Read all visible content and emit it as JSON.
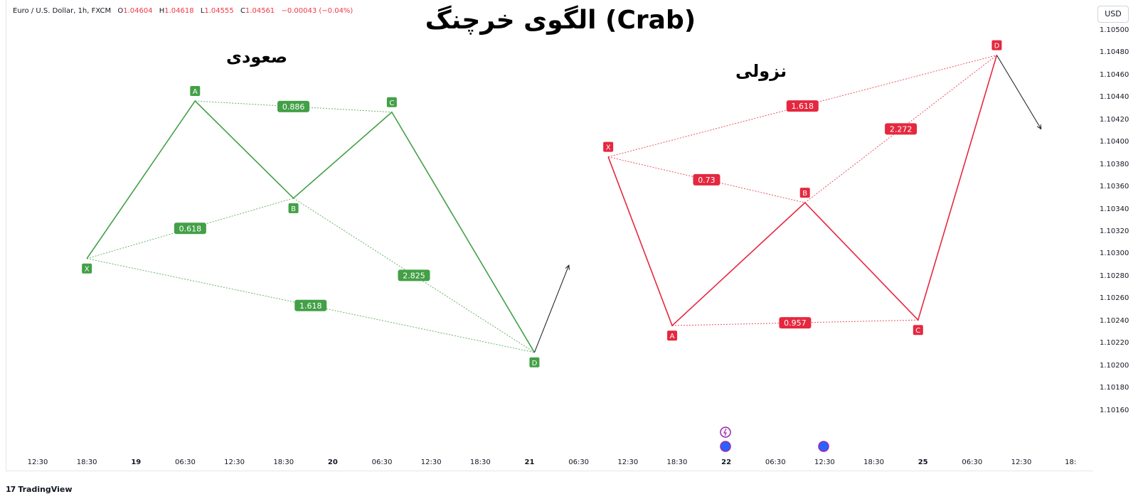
{
  "symbol_line": {
    "name": "Euro / U.S. Dollar, 1h, FXCM",
    "o_label": "O",
    "o_value": "1.04604",
    "h_label": "H",
    "h_value": "1.04618",
    "l_label": "L",
    "l_value": "1.04555",
    "c_label": "C",
    "c_value": "1.04561",
    "change": "−0.00043 (−0.04%)"
  },
  "title": "الگوی خرچنگ (Crab)",
  "currency": "USD",
  "footer_logo": "TradingView",
  "colors": {
    "bullish": "#43a047",
    "bearish": "#e5283f",
    "arrow": "#131722",
    "text": "#131722"
  },
  "chart_data": {
    "type": "line",
    "y_axis": {
      "ticks": [
        "1.10500",
        "1.10480",
        "1.10460",
        "1.10440",
        "1.10420",
        "1.10400",
        "1.10380",
        "1.10360",
        "1.10340",
        "1.10320",
        "1.10300",
        "1.10280",
        "1.10260",
        "1.10240",
        "1.10220",
        "1.10200",
        "1.10180",
        "1.10160"
      ],
      "ylim": [
        1.1014,
        1.105
      ]
    },
    "x_axis": {
      "ticks": [
        {
          "label": "12:30",
          "bold": false
        },
        {
          "label": "18:30",
          "bold": false
        },
        {
          "label": "19",
          "bold": true
        },
        {
          "label": "06:30",
          "bold": false
        },
        {
          "label": "12:30",
          "bold": false
        },
        {
          "label": "18:30",
          "bold": false
        },
        {
          "label": "20",
          "bold": true
        },
        {
          "label": "06:30",
          "bold": false
        },
        {
          "label": "12:30",
          "bold": false
        },
        {
          "label": "18:30",
          "bold": false
        },
        {
          "label": "21",
          "bold": true
        },
        {
          "label": "06:30",
          "bold": false
        },
        {
          "label": "12:30",
          "bold": false
        },
        {
          "label": "18:30",
          "bold": false
        },
        {
          "label": "22",
          "bold": true
        },
        {
          "label": "06:30",
          "bold": false
        },
        {
          "label": "12:30",
          "bold": false
        },
        {
          "label": "18:30",
          "bold": false
        },
        {
          "label": "25",
          "bold": true
        },
        {
          "label": "06:30",
          "bold": false
        },
        {
          "label": "12:30",
          "bold": false
        },
        {
          "label": "18:",
          "bold": false
        }
      ]
    },
    "patterns": [
      {
        "name": "صعودی",
        "color": "#43a047",
        "points": [
          {
            "label": "X",
            "t": 1.0,
            "price": 1.10296,
            "label_pos": "below"
          },
          {
            "label": "A",
            "t": 3.2,
            "price": 1.10437,
            "label_pos": "above"
          },
          {
            "label": "B",
            "t": 5.2,
            "price": 1.1035,
            "label_pos": "below"
          },
          {
            "label": "C",
            "t": 7.2,
            "price": 1.10427,
            "label_pos": "above"
          },
          {
            "label": "D",
            "t": 10.1,
            "price": 1.10212,
            "label_pos": "below"
          }
        ],
        "ratios": [
          {
            "from": "X",
            "to": "B",
            "value": "0.618"
          },
          {
            "from": "A",
            "to": "C",
            "value": "0.886"
          },
          {
            "from": "B",
            "to": "D",
            "value": "2.825"
          },
          {
            "from": "X",
            "to": "D",
            "value": "1.618"
          }
        ],
        "arrow": {
          "t_end": 10.8,
          "price_end": 1.1029
        }
      },
      {
        "name": "نزولی",
        "color": "#e5283f",
        "points": [
          {
            "label": "X",
            "t": 11.6,
            "price": 1.10387,
            "label_pos": "above"
          },
          {
            "label": "A",
            "t": 12.9,
            "price": 1.10236,
            "label_pos": "below"
          },
          {
            "label": "B",
            "t": 15.6,
            "price": 1.10346,
            "label_pos": "above"
          },
          {
            "label": "C",
            "t": 17.9,
            "price": 1.10241,
            "label_pos": "below"
          },
          {
            "label": "D",
            "t": 19.5,
            "price": 1.10478,
            "label_pos": "above"
          }
        ],
        "ratios": [
          {
            "from": "X",
            "to": "B",
            "value": "0.73"
          },
          {
            "from": "A",
            "to": "C",
            "value": "0.957"
          },
          {
            "from": "B",
            "to": "D",
            "value": "2.272"
          },
          {
            "from": "X",
            "to": "D",
            "value": "1.618"
          }
        ],
        "arrow": {
          "t_end": 20.4,
          "price_end": 1.10412
        }
      }
    ]
  }
}
